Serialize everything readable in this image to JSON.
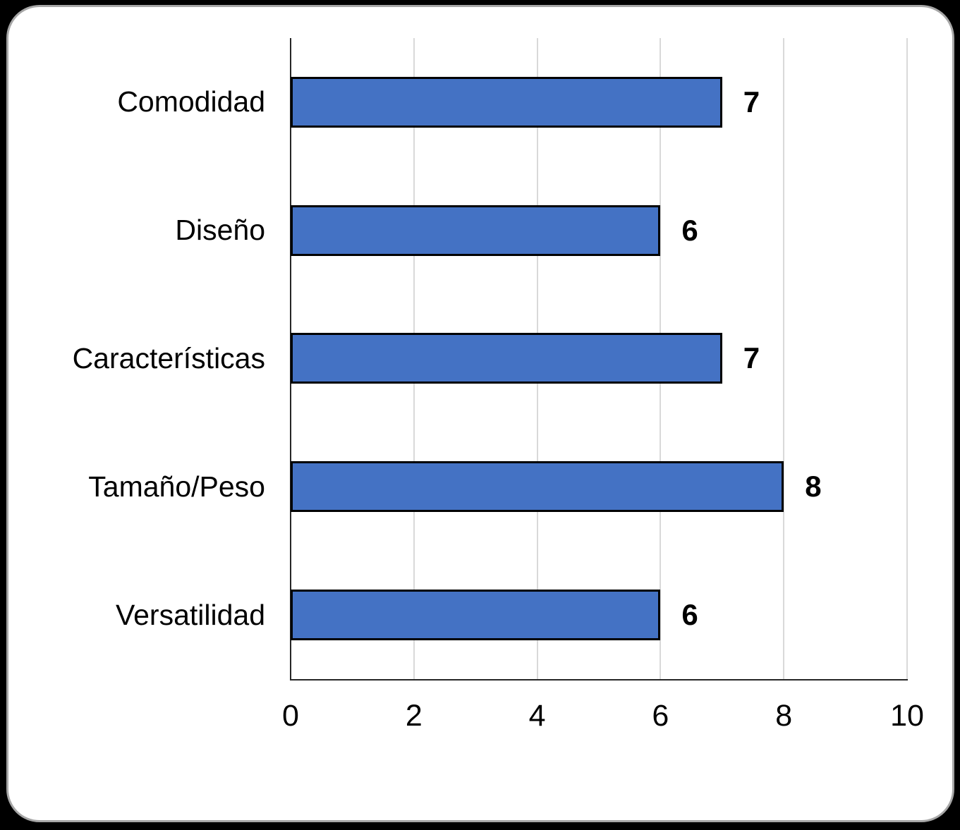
{
  "window": {
    "background_color": "#000000",
    "card_background_color": "#FFFFFF",
    "card_border_color": "#A6A6A6"
  },
  "chart_data": {
    "type": "bar",
    "orientation": "horizontal",
    "title": "",
    "xlabel": "",
    "ylabel": "",
    "categories": [
      "Comodidad",
      "Diseño",
      "Características",
      "Tamaño/Peso",
      "Versatilidad"
    ],
    "values": [
      7,
      6,
      7,
      8,
      6
    ],
    "data_labels_shown": true,
    "xlim": [
      0,
      10
    ],
    "xticks": [
      0,
      2,
      4,
      6,
      8,
      10
    ],
    "grid": "vertical-gridlines-on",
    "legend_position": "none",
    "bar_fill_color": "#4472C4",
    "bar_border_color": "#000000",
    "gridline_color": "#D9D9D9",
    "axis_line_color": "#262626",
    "text_color": "#000000"
  }
}
